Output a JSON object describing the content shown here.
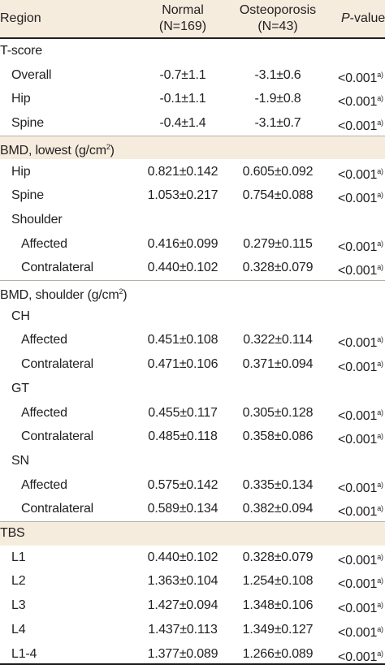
{
  "header": {
    "region": "Region",
    "normal_title": "Normal",
    "normal_n": "(N=169)",
    "osteo_title": "Osteoporosis",
    "osteo_n": "(N=43)",
    "p_italic": "P",
    "p_rest": "-value"
  },
  "rows": [
    {
      "label": "T-score",
      "normal": "",
      "osteo": "",
      "p": "",
      "sup": ""
    },
    {
      "label": "Overall",
      "normal": "-0.7±1.1",
      "osteo": "-3.1±0.6",
      "p": "<0.001",
      "sup": "a)"
    },
    {
      "label": "Hip",
      "normal": "-0.1±1.1",
      "osteo": "-1.9±0.8",
      "p": "<0.001",
      "sup": "a)"
    },
    {
      "label": "Spine",
      "normal": "-0.4±1.4",
      "osteo": "-3.1±0.7",
      "p": "<0.001",
      "sup": "a)"
    },
    {
      "label": "BMD, lowest (g/cm",
      "label_sup": "2",
      "label_end": ")",
      "normal": "",
      "osteo": "",
      "p": "",
      "sup": ""
    },
    {
      "label": "Hip",
      "normal": "0.821±0.142",
      "osteo": "0.605±0.092",
      "p": "<0.001",
      "sup": "a)"
    },
    {
      "label": "Spine",
      "normal": "1.053±0.217",
      "osteo": "0.754±0.088",
      "p": "<0.001",
      "sup": "a)"
    },
    {
      "label": "Shoulder",
      "normal": "",
      "osteo": "",
      "p": "",
      "sup": ""
    },
    {
      "label": "Affected",
      "normal": "0.416±0.099",
      "osteo": "0.279±0.115",
      "p": "<0.001",
      "sup": "a)"
    },
    {
      "label": "Contralateral",
      "normal": "0.440±0.102",
      "osteo": "0.328±0.079",
      "p": "<0.001",
      "sup": "a)"
    },
    {
      "label": "BMD, shoulder (g/cm",
      "label_sup": "2",
      "label_end": ")",
      "normal": "",
      "osteo": "",
      "p": "",
      "sup": ""
    },
    {
      "label": "CH",
      "normal": "",
      "osteo": "",
      "p": "",
      "sup": ""
    },
    {
      "label": "Affected",
      "normal": "0.451±0.108",
      "osteo": "0.322±0.114",
      "p": "<0.001",
      "sup": "a)"
    },
    {
      "label": "Contralateral",
      "normal": "0.471±0.106",
      "osteo": "0.371±0.094",
      "p": "<0.001",
      "sup": "a)"
    },
    {
      "label": "GT",
      "normal": "",
      "osteo": "",
      "p": "",
      "sup": ""
    },
    {
      "label": "Affected",
      "normal": "0.455±0.117",
      "osteo": "0.305±0.128",
      "p": "<0.001",
      "sup": "a)"
    },
    {
      "label": "Contralateral",
      "normal": "0.485±0.118",
      "osteo": "0.358±0.086",
      "p": "<0.001",
      "sup": "a)"
    },
    {
      "label": "SN",
      "normal": "",
      "osteo": "",
      "p": "",
      "sup": ""
    },
    {
      "label": "Affected",
      "normal": "0.575±0.142",
      "osteo": "0.335±0.134",
      "p": "<0.001",
      "sup": "a)"
    },
    {
      "label": "Contralateral",
      "normal": "0.589±0.134",
      "osteo": "0.382±0.094",
      "p": "<0.001",
      "sup": "a)"
    },
    {
      "label": "TBS",
      "normal": "",
      "osteo": "",
      "p": "",
      "sup": ""
    },
    {
      "label": "L1",
      "normal": "0.440±0.102",
      "osteo": "0.328±0.079",
      "p": "<0.001",
      "sup": "a)"
    },
    {
      "label": "L2",
      "normal": "1.363±0.104",
      "osteo": "1.254±0.108",
      "p": "<0.001",
      "sup": "a)"
    },
    {
      "label": "L3",
      "normal": "1.427±0.094",
      "osteo": "1.348±0.106",
      "p": "<0.001",
      "sup": "a)"
    },
    {
      "label": "L4",
      "normal": "1.437±0.113",
      "osteo": "1.349±0.127",
      "p": "<0.001",
      "sup": "a)"
    },
    {
      "label": "L1-4",
      "normal": "1.377±0.089",
      "osteo": "1.266±0.089",
      "p": "<0.001",
      "sup": "a)"
    }
  ],
  "colors": {
    "section_bg": "#f5ecde",
    "rule": "#231f20",
    "text": "#231f20"
  }
}
